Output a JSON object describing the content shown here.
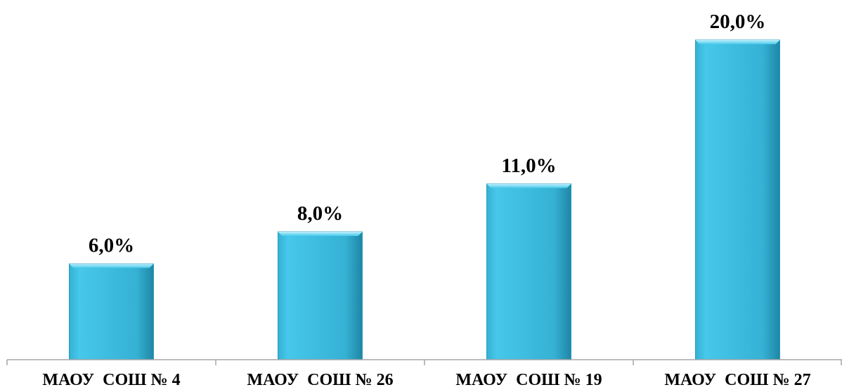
{
  "chart_data": {
    "type": "bar",
    "categories": [
      "МАОУ  СОШ № 4",
      "МАОУ  СОШ № 26",
      "МАОУ  СОШ № 19",
      "МАОУ  СОШ № 27"
    ],
    "values": [
      6.0,
      8.0,
      11.0,
      20.0
    ],
    "data_labels": [
      "6,0%",
      "8,0%",
      "11,0%",
      "20,0%"
    ],
    "unit": "%",
    "title": "",
    "xlabel": "",
    "ylabel": "",
    "ylim": [
      0,
      22
    ],
    "grid": false,
    "legend": "none",
    "colors": {
      "bar_light": "#46c8ea",
      "bar_mid": "#35b1d4",
      "bar_dark": "#1f86a5",
      "axis": "#a6a6a6"
    }
  }
}
